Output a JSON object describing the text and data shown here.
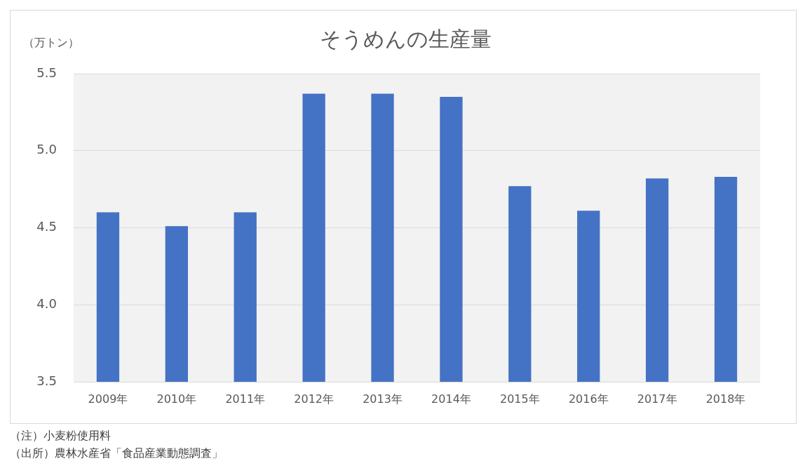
{
  "chart_data": {
    "type": "bar",
    "title": "そうめんの生産量",
    "ylabel": "（万トン）",
    "categories": [
      "2009年",
      "2010年",
      "2011年",
      "2012年",
      "2013年",
      "2014年",
      "2015年",
      "2016年",
      "2017年",
      "2018年"
    ],
    "values": [
      4.6,
      4.51,
      4.6,
      5.37,
      5.37,
      5.35,
      4.77,
      4.61,
      4.82,
      4.83
    ],
    "color": "#4472c4",
    "ylim": [
      3.5,
      5.5
    ],
    "yticks": [
      {
        "value": 3.5,
        "label": "3.5"
      },
      {
        "value": 4,
        "label": "4.0"
      },
      {
        "value": 4.5,
        "label": "4.5"
      },
      {
        "value": 5,
        "label": "5.0"
      },
      {
        "value": 5.5,
        "label": "5.5"
      }
    ],
    "grid": "y",
    "legend": false,
    "annotations": [
      "（注）小麦粉使用料",
      "（出所）農林水産省「食品産業動態調査」"
    ]
  }
}
